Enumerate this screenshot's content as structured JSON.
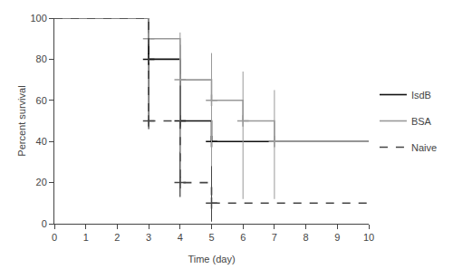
{
  "chart_data": {
    "type": "line",
    "xlabel": "Time (day)",
    "ylabel": "Percent survival",
    "xlim": [
      0,
      10
    ],
    "ylim": [
      0,
      100
    ],
    "xticks": [
      0,
      1,
      2,
      3,
      4,
      5,
      6,
      7,
      8,
      9,
      10
    ],
    "yticks": [
      0,
      20,
      40,
      60,
      80,
      100
    ],
    "grid": false,
    "legend": "right",
    "marker": "plus",
    "series": [
      {
        "name": "IsdB",
        "color": "#111111",
        "line_style": "solid",
        "x": [
          0,
          3,
          3,
          4,
          4,
          5,
          5,
          10
        ],
        "values": [
          100,
          100,
          80,
          80,
          50,
          50,
          40,
          40
        ],
        "marker_x": [
          3,
          4,
          5
        ],
        "marker_values": [
          80,
          50,
          40
        ],
        "ci_x": [
          3,
          4,
          5
        ],
        "ci_lo": [
          46,
          13,
          13
        ],
        "ci_hi": [
          95,
          87,
          67
        ]
      },
      {
        "name": "BSA",
        "color": "#999999",
        "line_style": "solid",
        "x": [
          0,
          3,
          3,
          4,
          4,
          5,
          5,
          6,
          6,
          7,
          7,
          10
        ],
        "values": [
          100,
          100,
          90,
          90,
          70,
          70,
          60,
          60,
          50,
          50,
          40,
          40
        ],
        "marker_x": [
          3,
          4,
          5,
          6,
          7
        ],
        "marker_values": [
          90,
          70,
          60,
          50,
          40
        ],
        "ci_x": [
          4,
          5,
          6,
          7
        ],
        "ci_lo": [
          35,
          24,
          12,
          12
        ],
        "ci_hi": [
          93,
          83,
          74,
          65
        ]
      },
      {
        "name": "Naive",
        "color": "#444444",
        "line_style": "dashed",
        "x": [
          0,
          3,
          3,
          4,
          4,
          5,
          5,
          10
        ],
        "values": [
          100,
          100,
          50,
          50,
          20,
          20,
          10,
          10
        ],
        "marker_x": [
          3,
          4,
          5
        ],
        "marker_values": [
          50,
          20,
          10
        ],
        "ci_x": [
          5
        ],
        "ci_lo": [
          1
        ],
        "ci_hi": [
          28
        ]
      }
    ]
  }
}
